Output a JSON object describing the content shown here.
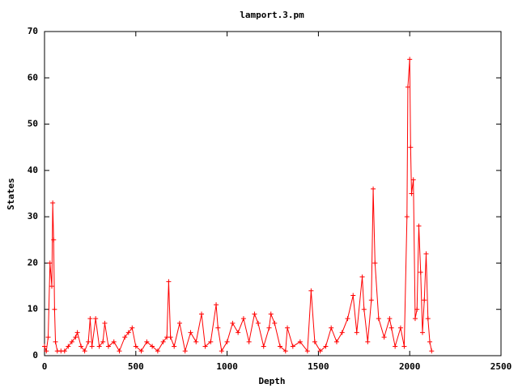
{
  "chart_data": {
    "type": "line",
    "title": "lamport.3.pm",
    "xlabel": "Depth",
    "ylabel": "States",
    "x": [
      0,
      10,
      20,
      30,
      40,
      45,
      50,
      55,
      60,
      70,
      90,
      110,
      130,
      150,
      170,
      180,
      200,
      220,
      240,
      250,
      260,
      280,
      300,
      320,
      330,
      350,
      380,
      410,
      440,
      460,
      480,
      500,
      530,
      560,
      590,
      620,
      650,
      670,
      680,
      690,
      710,
      740,
      770,
      800,
      830,
      860,
      880,
      910,
      940,
      950,
      970,
      1000,
      1030,
      1060,
      1090,
      1120,
      1150,
      1170,
      1200,
      1230,
      1240,
      1260,
      1290,
      1320,
      1330,
      1360,
      1400,
      1440,
      1460,
      1480,
      1510,
      1540,
      1570,
      1600,
      1630,
      1660,
      1690,
      1710,
      1740,
      1750,
      1770,
      1790,
      1800,
      1810,
      1830,
      1860,
      1890,
      1900,
      1920,
      1950,
      1970,
      1985,
      1990,
      2000,
      2005,
      2010,
      2020,
      2030,
      2040,
      2050,
      2060,
      2070,
      2080,
      2090,
      2100,
      2110,
      2120
    ],
    "series": [
      {
        "color": "#ff0000",
        "values": [
          2,
          1,
          4,
          20,
          15,
          33,
          25,
          10,
          3,
          1,
          1,
          1,
          2,
          3,
          4,
          5,
          2,
          1,
          3,
          8,
          2,
          8,
          2,
          3,
          7,
          2,
          3,
          1,
          4,
          5,
          6,
          2,
          1,
          3,
          2,
          1,
          3,
          4,
          16,
          4,
          2,
          7,
          1,
          5,
          3,
          9,
          2,
          3,
          11,
          6,
          1,
          3,
          7,
          5,
          8,
          3,
          9,
          7,
          2,
          6,
          9,
          7,
          2,
          1,
          6,
          2,
          3,
          1,
          14,
          3,
          1,
          2,
          6,
          3,
          5,
          8,
          13,
          5,
          17,
          10,
          3,
          12,
          36,
          20,
          8,
          4,
          8,
          6,
          2,
          6,
          2,
          30,
          58,
          64,
          45,
          35,
          38,
          8,
          10,
          28,
          18,
          5,
          12,
          22,
          8,
          3,
          1
        ]
      }
    ],
    "xlim": [
      0,
      2500
    ],
    "xticks": [
      0,
      500,
      1000,
      1500,
      2000,
      2500
    ],
    "ylim": [
      0,
      70
    ],
    "yticks": [
      0,
      10,
      20,
      30,
      40,
      50,
      60,
      70
    ]
  }
}
